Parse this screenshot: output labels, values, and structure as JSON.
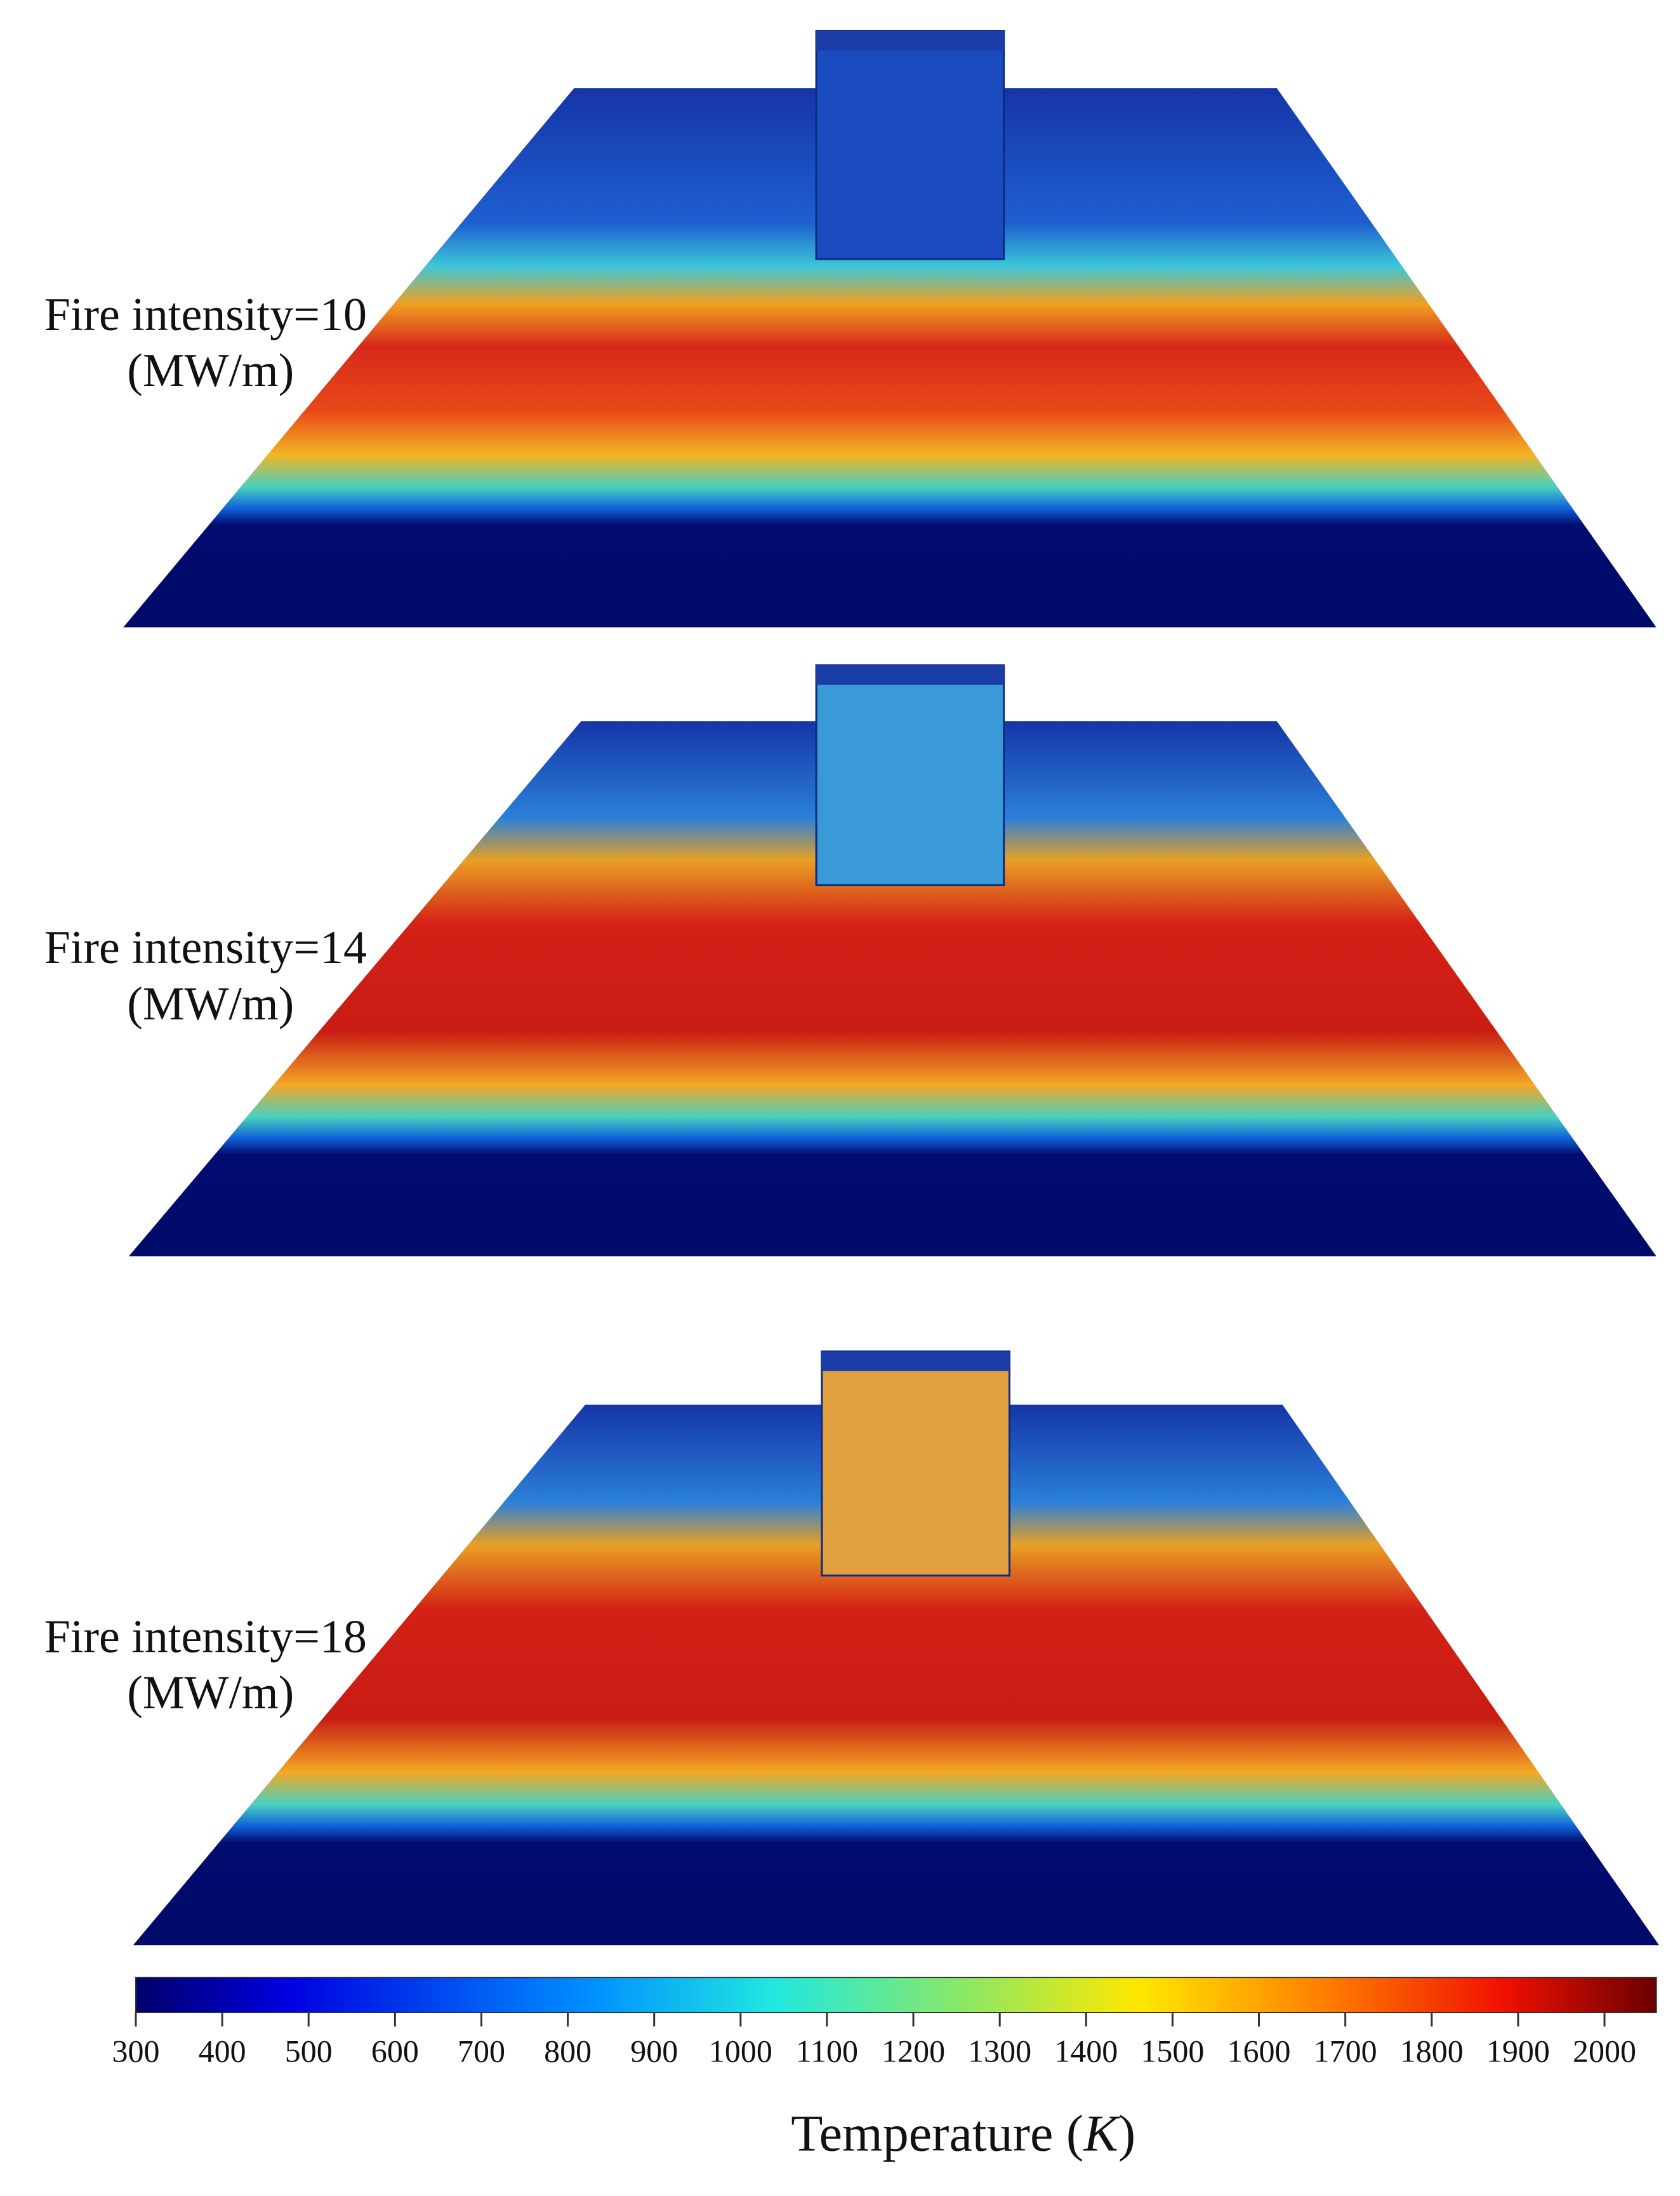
{
  "panels": [
    {
      "label": "Fire intensity=10",
      "unit": "(MW/m)"
    },
    {
      "label": "Fire intensity=14",
      "unit": "(MW/m)"
    },
    {
      "label": "Fire intensity=18",
      "unit": "(MW/m)"
    }
  ],
  "colorbar": {
    "title_parts": [
      "Temperature (",
      "K",
      ")"
    ],
    "lim": [
      300,
      2060
    ],
    "ticks": [
      300,
      400,
      500,
      600,
      700,
      800,
      900,
      1000,
      1100,
      1200,
      1300,
      1400,
      1500,
      1600,
      1700,
      1800,
      1900,
      2000
    ]
  }
}
